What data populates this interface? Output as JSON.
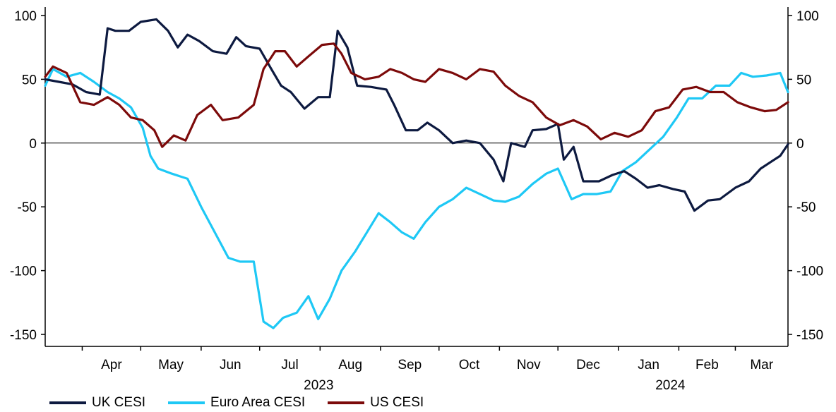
{
  "chart_data": {
    "type": "line",
    "title": "",
    "xlabel": "",
    "ylabel": "",
    "ylim": [
      -150,
      100
    ],
    "y_ticks": [
      100,
      50,
      0,
      -50,
      -100,
      -150
    ],
    "y_ticks_right": [
      100,
      50,
      0,
      -50,
      -100,
      -150
    ],
    "x_range": [
      "2023-03-13",
      "2024-03-28"
    ],
    "x_tick_labels": [
      "Apr",
      "May",
      "Jun",
      "Jul",
      "Aug",
      "Sep",
      "Oct",
      "Nov",
      "Dec",
      "Jan",
      "Feb",
      "Mar"
    ],
    "year_labels": [
      "2023",
      "2024"
    ],
    "zero_line": true,
    "grid": false,
    "legend_position": "bottom",
    "series": [
      {
        "name": "UK CESI",
        "color": "#0d1a40",
        "points": [
          [
            "2023-03-13",
            50
          ],
          [
            "2023-03-20",
            48
          ],
          [
            "2023-03-27",
            46
          ],
          [
            "2023-04-03",
            40
          ],
          [
            "2023-04-10",
            38
          ],
          [
            "2023-04-14",
            90
          ],
          [
            "2023-04-18",
            88
          ],
          [
            "2023-04-25",
            88
          ],
          [
            "2023-05-01",
            95
          ],
          [
            "2023-05-09",
            97
          ],
          [
            "2023-05-15",
            88
          ],
          [
            "2023-05-20",
            75
          ],
          [
            "2023-05-25",
            85
          ],
          [
            "2023-05-31",
            80
          ],
          [
            "2023-06-07",
            72
          ],
          [
            "2023-06-14",
            70
          ],
          [
            "2023-06-19",
            83
          ],
          [
            "2023-06-24",
            76
          ],
          [
            "2023-07-01",
            74
          ],
          [
            "2023-07-07",
            58
          ],
          [
            "2023-07-12",
            45
          ],
          [
            "2023-07-17",
            40
          ],
          [
            "2023-07-24",
            27
          ],
          [
            "2023-07-31",
            36
          ],
          [
            "2023-08-06",
            36
          ],
          [
            "2023-08-10",
            88
          ],
          [
            "2023-08-15",
            75
          ],
          [
            "2023-08-20",
            45
          ],
          [
            "2023-08-27",
            44
          ],
          [
            "2023-09-04",
            42
          ],
          [
            "2023-09-08",
            30
          ],
          [
            "2023-09-14",
            10
          ],
          [
            "2023-09-20",
            10
          ],
          [
            "2023-09-25",
            16
          ],
          [
            "2023-10-01",
            10
          ],
          [
            "2023-10-08",
            0
          ],
          [
            "2023-10-15",
            2
          ],
          [
            "2023-10-22",
            0
          ],
          [
            "2023-10-29",
            -13
          ],
          [
            "2023-11-03",
            -30
          ],
          [
            "2023-11-07",
            0
          ],
          [
            "2023-11-14",
            -3
          ],
          [
            "2023-11-18",
            10
          ],
          [
            "2023-11-25",
            11
          ],
          [
            "2023-12-01",
            15
          ],
          [
            "2023-12-04",
            -13
          ],
          [
            "2023-12-09",
            -3
          ],
          [
            "2023-12-14",
            -30
          ],
          [
            "2023-12-22",
            -30
          ],
          [
            "2023-12-29",
            -25
          ],
          [
            "2024-01-04",
            -22
          ],
          [
            "2024-01-10",
            -28
          ],
          [
            "2024-01-16",
            -35
          ],
          [
            "2024-01-22",
            -33
          ],
          [
            "2024-01-29",
            -36
          ],
          [
            "2024-02-04",
            -38
          ],
          [
            "2024-02-09",
            -53
          ],
          [
            "2024-02-16",
            -45
          ],
          [
            "2024-02-22",
            -44
          ],
          [
            "2024-03-01",
            -35
          ],
          [
            "2024-03-08",
            -30
          ],
          [
            "2024-03-14",
            -20
          ],
          [
            "2024-03-20",
            -14
          ],
          [
            "2024-03-24",
            -10
          ],
          [
            "2024-03-28",
            -1
          ]
        ]
      },
      {
        "name": "Euro Area CESI",
        "color": "#1ec8f5",
        "points": [
          [
            "2023-03-13",
            45
          ],
          [
            "2023-03-17",
            58
          ],
          [
            "2023-03-24",
            52
          ],
          [
            "2023-03-31",
            55
          ],
          [
            "2023-04-07",
            48
          ],
          [
            "2023-04-14",
            40
          ],
          [
            "2023-04-20",
            35
          ],
          [
            "2023-04-26",
            28
          ],
          [
            "2023-05-02",
            12
          ],
          [
            "2023-05-06",
            -10
          ],
          [
            "2023-05-10",
            -20
          ],
          [
            "2023-05-17",
            -24
          ],
          [
            "2023-05-25",
            -28
          ],
          [
            "2023-06-01",
            -50
          ],
          [
            "2023-06-08",
            -70
          ],
          [
            "2023-06-15",
            -90
          ],
          [
            "2023-06-21",
            -93
          ],
          [
            "2023-06-28",
            -93
          ],
          [
            "2023-07-03",
            -140
          ],
          [
            "2023-07-08",
            -145
          ],
          [
            "2023-07-13",
            -137
          ],
          [
            "2023-07-20",
            -133
          ],
          [
            "2023-07-26",
            -120
          ],
          [
            "2023-07-31",
            -138
          ],
          [
            "2023-08-06",
            -122
          ],
          [
            "2023-08-12",
            -100
          ],
          [
            "2023-08-19",
            -85
          ],
          [
            "2023-08-25",
            -70
          ],
          [
            "2023-08-31",
            -55
          ],
          [
            "2023-09-06",
            -62
          ],
          [
            "2023-09-12",
            -70
          ],
          [
            "2023-09-18",
            -75
          ],
          [
            "2023-09-24",
            -62
          ],
          [
            "2023-10-01",
            -50
          ],
          [
            "2023-10-08",
            -44
          ],
          [
            "2023-10-15",
            -35
          ],
          [
            "2023-10-22",
            -40
          ],
          [
            "2023-10-29",
            -45
          ],
          [
            "2023-11-04",
            -46
          ],
          [
            "2023-11-11",
            -42
          ],
          [
            "2023-11-18",
            -32
          ],
          [
            "2023-11-25",
            -24
          ],
          [
            "2023-12-01",
            -20
          ],
          [
            "2023-12-08",
            -44
          ],
          [
            "2023-12-14",
            -40
          ],
          [
            "2023-12-21",
            -40
          ],
          [
            "2023-12-28",
            -38
          ],
          [
            "2024-01-03",
            -22
          ],
          [
            "2024-01-10",
            -15
          ],
          [
            "2024-01-17",
            -5
          ],
          [
            "2024-01-24",
            5
          ],
          [
            "2024-01-31",
            20
          ],
          [
            "2024-02-06",
            35
          ],
          [
            "2024-02-13",
            35
          ],
          [
            "2024-02-20",
            45
          ],
          [
            "2024-02-27",
            45
          ],
          [
            "2024-03-04",
            55
          ],
          [
            "2024-03-10",
            52
          ],
          [
            "2024-03-17",
            53
          ],
          [
            "2024-03-24",
            55
          ],
          [
            "2024-03-28",
            40
          ]
        ]
      },
      {
        "name": "US CESI",
        "color": "#7c0a0a",
        "points": [
          [
            "2023-03-13",
            52
          ],
          [
            "2023-03-17",
            60
          ],
          [
            "2023-03-24",
            55
          ],
          [
            "2023-03-31",
            32
          ],
          [
            "2023-04-07",
            30
          ],
          [
            "2023-04-14",
            36
          ],
          [
            "2023-04-20",
            30
          ],
          [
            "2023-04-26",
            20
          ],
          [
            "2023-05-02",
            18
          ],
          [
            "2023-05-08",
            10
          ],
          [
            "2023-05-12",
            -3
          ],
          [
            "2023-05-18",
            6
          ],
          [
            "2023-05-24",
            2
          ],
          [
            "2023-05-30",
            22
          ],
          [
            "2023-06-06",
            30
          ],
          [
            "2023-06-12",
            18
          ],
          [
            "2023-06-20",
            20
          ],
          [
            "2023-06-28",
            30
          ],
          [
            "2023-07-03",
            58
          ],
          [
            "2023-07-09",
            72
          ],
          [
            "2023-07-14",
            72
          ],
          [
            "2023-07-20",
            60
          ],
          [
            "2023-07-26",
            68
          ],
          [
            "2023-08-02",
            77
          ],
          [
            "2023-08-08",
            78
          ],
          [
            "2023-08-12",
            70
          ],
          [
            "2023-08-17",
            55
          ],
          [
            "2023-08-24",
            50
          ],
          [
            "2023-08-31",
            52
          ],
          [
            "2023-09-06",
            58
          ],
          [
            "2023-09-12",
            55
          ],
          [
            "2023-09-18",
            50
          ],
          [
            "2023-09-24",
            48
          ],
          [
            "2023-10-01",
            58
          ],
          [
            "2023-10-08",
            55
          ],
          [
            "2023-10-15",
            50
          ],
          [
            "2023-10-22",
            58
          ],
          [
            "2023-10-29",
            56
          ],
          [
            "2023-11-04",
            45
          ],
          [
            "2023-11-11",
            37
          ],
          [
            "2023-11-18",
            32
          ],
          [
            "2023-11-25",
            20
          ],
          [
            "2023-12-02",
            14
          ],
          [
            "2023-12-09",
            18
          ],
          [
            "2023-12-16",
            13
          ],
          [
            "2023-12-23",
            3
          ],
          [
            "2023-12-30",
            8
          ],
          [
            "2024-01-06",
            5
          ],
          [
            "2024-01-13",
            10
          ],
          [
            "2024-01-20",
            25
          ],
          [
            "2024-01-27",
            28
          ],
          [
            "2024-02-03",
            42
          ],
          [
            "2024-02-10",
            44
          ],
          [
            "2024-02-17",
            40
          ],
          [
            "2024-02-24",
            40
          ],
          [
            "2024-03-02",
            32
          ],
          [
            "2024-03-09",
            28
          ],
          [
            "2024-03-16",
            25
          ],
          [
            "2024-03-22",
            26
          ],
          [
            "2024-03-28",
            32
          ]
        ]
      }
    ]
  }
}
